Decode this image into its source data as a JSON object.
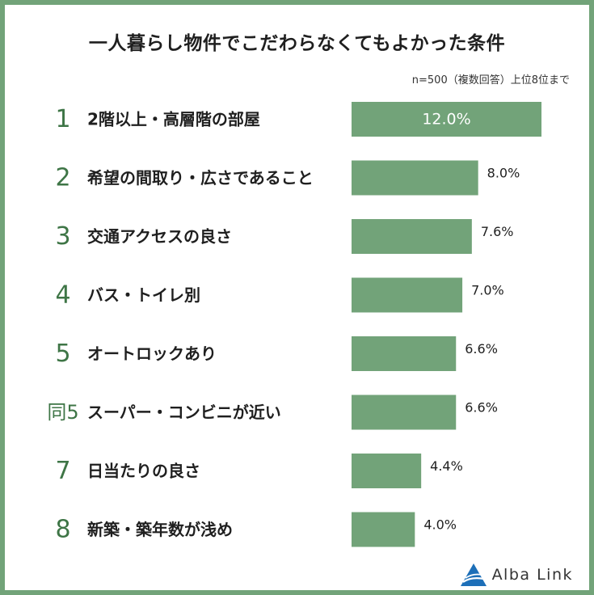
{
  "title": "一人暮らし物件でこだわらなくてもよかった条件",
  "note": "n=500（複数回答）上位8位まで",
  "brand": "Alba Link",
  "colors": {
    "border": "#72a379",
    "bar": "#72a379",
    "rank": "#3e7546",
    "logo": "#1d6fb8"
  },
  "chart_data": {
    "type": "bar",
    "orientation": "horizontal",
    "unit": "%",
    "ranks": [
      "1",
      "2",
      "3",
      "4",
      "5",
      "同5",
      "7",
      "8"
    ],
    "categories": [
      "2階以上・高層階の部屋",
      "希望の間取り・広さであること",
      "交通アクセスの良さ",
      "バス・トイレ別",
      "オートロックあり",
      "スーパー・コンビニが近い",
      "日当たりの良さ",
      "新築・築年数が浅め"
    ],
    "values": [
      12.0,
      8.0,
      7.6,
      7.0,
      6.6,
      6.6,
      4.4,
      4.0
    ],
    "value_labels": [
      "12.0%",
      "8.0%",
      "7.6%",
      "7.0%",
      "6.6%",
      "6.6%",
      "4.4%",
      "4.0%"
    ]
  }
}
